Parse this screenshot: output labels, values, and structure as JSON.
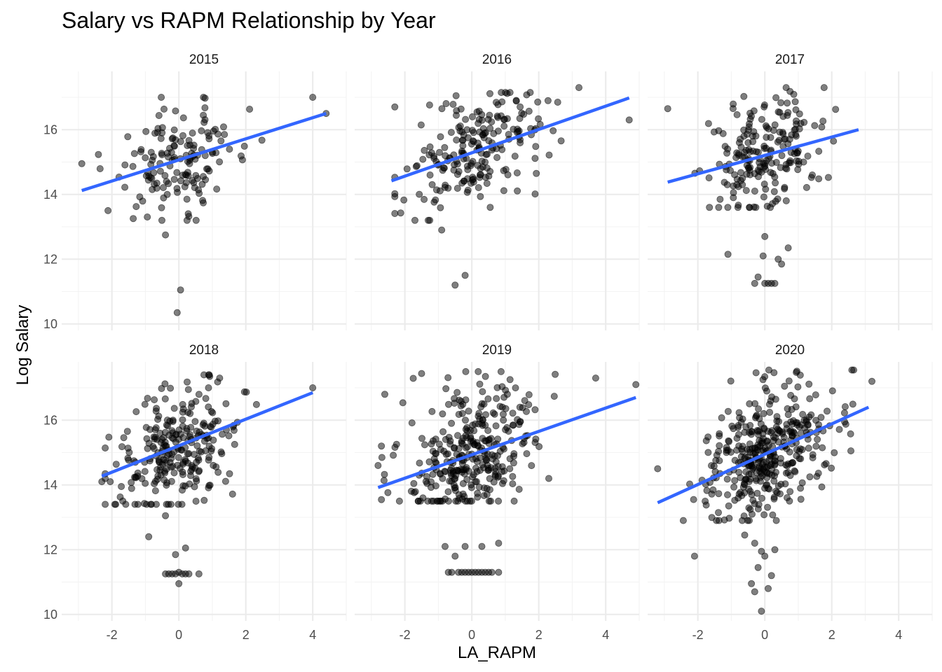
{
  "chart_data": {
    "type": "scatter",
    "title": "Salary vs RAPM Relationship by Year",
    "xlabel": "LA_RAPM",
    "ylabel": "Log Salary",
    "xlim": [
      -3.5,
      5.0
    ],
    "ylim": [
      9.8,
      17.8
    ],
    "x_ticks": [
      -2,
      0,
      2,
      4
    ],
    "y_ticks": [
      10,
      12,
      14,
      16
    ],
    "grid": true,
    "point_color": "#000000",
    "fit_color": "#3366FF",
    "panels": [
      {
        "year": "2015",
        "fit": {
          "x": [
            -2.9,
            4.4
          ],
          "y": [
            14.12,
            16.5
          ]
        }
      },
      {
        "year": "2016",
        "fit": {
          "x": [
            -2.4,
            4.7
          ],
          "y": [
            14.42,
            16.98
          ]
        }
      },
      {
        "year": "2017",
        "fit": {
          "x": [
            -2.9,
            2.8
          ],
          "y": [
            14.38,
            16.0
          ]
        }
      },
      {
        "year": "2018",
        "fit": {
          "x": [
            -2.3,
            4.0
          ],
          "y": [
            14.27,
            16.85
          ]
        }
      },
      {
        "year": "2019",
        "fit": {
          "x": [
            -2.8,
            4.9
          ],
          "y": [
            13.92,
            16.7
          ]
        }
      },
      {
        "year": "2020",
        "fit": {
          "x": [
            -3.2,
            3.1
          ],
          "y": [
            13.45,
            16.4
          ]
        }
      }
    ]
  }
}
